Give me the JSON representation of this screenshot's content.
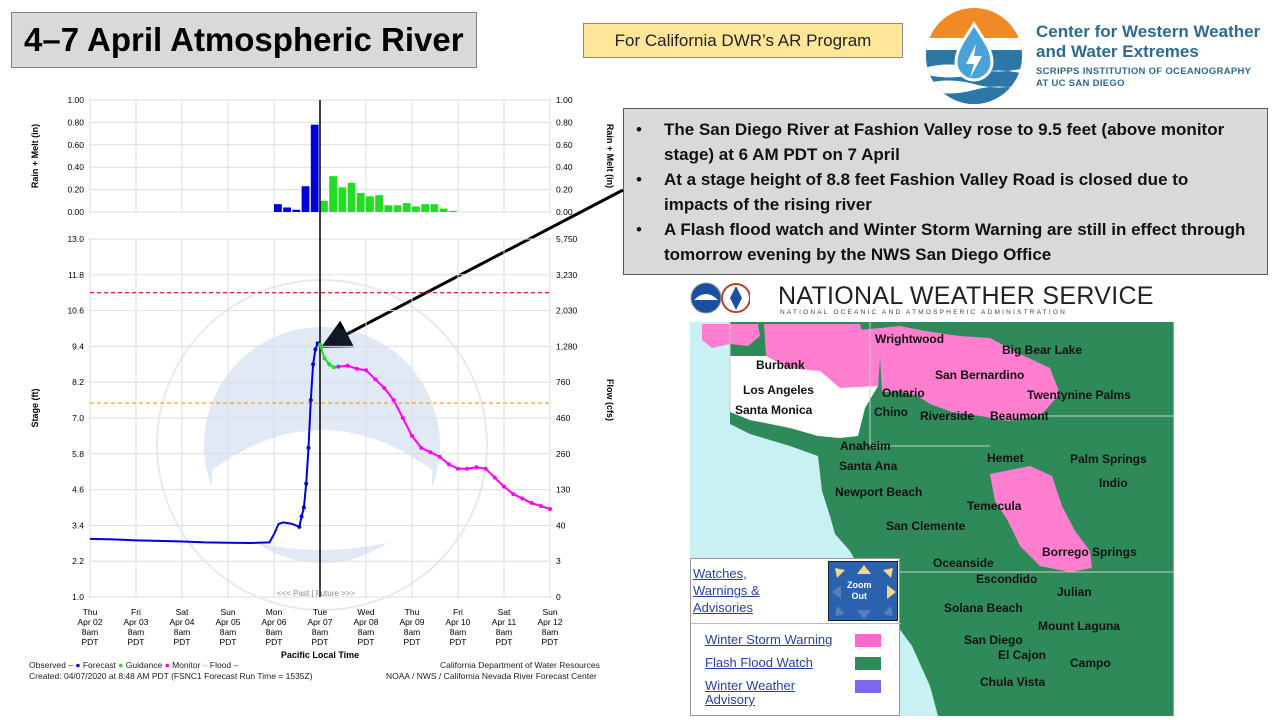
{
  "slide": {
    "title": "4–7 April Atmospheric River",
    "program_badge": "For California DWR’s AR Program",
    "logo": {
      "line1": "Center for Western Weather",
      "line2": "and Water Extremes",
      "line3": "SCRIPPS INSTITUTION OF OCEANOGRAPHY",
      "line4": "AT UC SAN DIEGO"
    },
    "bullets": [
      "The San Diego River at Fashion Valley rose to 9.5 feet (above monitor stage) at 6 AM PDT on 7 April",
      "At a stage height of 8.8 feet Fashion Valley Road is closed due to impacts of the rising river",
      "A Flash flood watch and Winter Storm Warning are still in effect through tomorrow evening by the NWS San Diego Office"
    ]
  },
  "hydrograph": {
    "precip_left_label": "Rain + Melt (in)",
    "precip_right_label": "Rain + Melt (in)",
    "precip_ticks": [
      "1.00",
      "0.80",
      "0.60",
      "0.40",
      "0.20",
      "0.00"
    ],
    "stage_label": "Stage (ft)",
    "flow_label": "Flow (cfs)",
    "stage_ticks": [
      "13.0",
      "11.8",
      "10.6",
      "9.4",
      "8.2",
      "7.0",
      "5.8",
      "4.6",
      "3.4",
      "2.2",
      "1.0"
    ],
    "flow_ticks": [
      "5,750",
      "3,230",
      "2,030",
      "1,280",
      "760",
      "460",
      "260",
      "130",
      "40",
      "3",
      "0"
    ],
    "x_ticks": [
      [
        "Thu",
        "Apr 02",
        "8am",
        "PDT"
      ],
      [
        "Fri",
        "Apr 03",
        "8am",
        "PDT"
      ],
      [
        "Sat",
        "Apr 04",
        "8am",
        "PDT"
      ],
      [
        "Sun",
        "Apr 05",
        "8am",
        "PDT"
      ],
      [
        "Mon",
        "Apr 06",
        "8am",
        "PDT"
      ],
      [
        "Tue",
        "Apr 07",
        "8am",
        "PDT"
      ],
      [
        "Wed",
        "Apr 08",
        "8am",
        "PDT"
      ],
      [
        "Thu",
        "Apr 09",
        "8am",
        "PDT"
      ],
      [
        "Fri",
        "Apr 10",
        "8am",
        "PDT"
      ],
      [
        "Sat",
        "Apr 11",
        "8am",
        "PDT"
      ],
      [
        "Sun",
        "Apr 12",
        "8am",
        "PDT"
      ]
    ],
    "x_axis_label": "Pacific Local Time",
    "past_future": "<<< Past | Future >>>",
    "legend": {
      "observed": "Observed",
      "forecast": "Forecast",
      "guidance": "Guidance",
      "monitor": "Monitor",
      "flood": "Flood"
    },
    "footer_right_1": "California Department of Water Resources",
    "footer_right_2": "NOAA / NWS / California Nevada River Forecast Center",
    "footer_left": "Created: 04/07/2020 at 8:48 AM PDT  (FSNC1 Forecast Run Time = 1535Z)",
    "colors": {
      "observed": "#0000dd",
      "guidance": "#22dd22",
      "monitor": "#ff00ff",
      "flood": "#dd0000",
      "monitor_line": "#ff9900"
    }
  },
  "chart_data": [
    {
      "type": "bar",
      "title": "",
      "ylabel": "Rain + Melt (in)",
      "ylim": [
        0,
        1.0
      ],
      "series": [
        {
          "name": "Observed",
          "x": [
            4.0,
            4.2,
            4.4,
            4.6,
            4.8
          ],
          "values": [
            0.07,
            0.04,
            0.02,
            0.23,
            0.78
          ]
        },
        {
          "name": "Guidance",
          "x": [
            5.0,
            5.2,
            5.4,
            5.6,
            5.8,
            6.0,
            6.2,
            6.4,
            6.6,
            6.8,
            7.0,
            7.2,
            7.4,
            7.6,
            7.8
          ],
          "values": [
            0.1,
            0.32,
            0.22,
            0.26,
            0.17,
            0.14,
            0.15,
            0.06,
            0.06,
            0.08,
            0.05,
            0.07,
            0.07,
            0.03,
            0.01
          ]
        }
      ]
    },
    {
      "type": "line",
      "title": "",
      "xlabel": "Pacific Local Time",
      "ylabel": "Stage (ft)",
      "ylim": [
        1.0,
        13.0
      ],
      "thresholds": {
        "flood": 11.2,
        "monitor": 7.5
      },
      "series": [
        {
          "name": "Observed",
          "x": [
            0,
            0.5,
            1.0,
            1.5,
            2.0,
            2.5,
            3.0,
            3.5,
            3.9,
            4.0,
            4.1,
            4.2,
            4.4,
            4.55,
            4.6,
            4.65,
            4.7,
            4.75,
            4.8,
            4.85,
            4.9,
            4.95,
            5.0
          ],
          "values": [
            2.95,
            2.93,
            2.9,
            2.88,
            2.86,
            2.83,
            2.82,
            2.81,
            2.83,
            3.1,
            3.45,
            3.5,
            3.45,
            3.35,
            3.7,
            4.0,
            4.8,
            6.0,
            7.6,
            8.8,
            9.3,
            9.5,
            9.45
          ]
        },
        {
          "name": "Guidance",
          "x": [
            5.0,
            5.1,
            5.2,
            5.3,
            5.4
          ],
          "values": [
            9.45,
            9.0,
            8.8,
            8.7,
            8.72
          ]
        },
        {
          "name": "Monitor",
          "x": [
            5.4,
            5.6,
            5.8,
            6.0,
            6.2,
            6.4,
            6.6,
            6.8,
            7.0,
            7.2,
            7.4,
            7.6,
            7.8,
            8.0,
            8.2,
            8.4,
            8.6,
            8.8,
            9.0,
            9.2,
            9.4,
            9.6,
            9.8,
            10.0
          ],
          "values": [
            8.72,
            8.75,
            8.65,
            8.6,
            8.3,
            8.0,
            7.6,
            7.0,
            6.4,
            6.0,
            5.85,
            5.7,
            5.45,
            5.3,
            5.3,
            5.35,
            5.3,
            5.0,
            4.7,
            4.45,
            4.3,
            4.15,
            4.05,
            3.95
          ]
        }
      ]
    }
  ],
  "map": {
    "title": "NATIONAL WEATHER SERVICE",
    "subtitle": "NATIONAL OCEANIC AND ATMOSPHERIC ADMINISTRATION",
    "cities": [
      "Wrightwood",
      "Burbank",
      "Big Bear Lake",
      "Los Angeles",
      "San Bernardino",
      "Ontario",
      "Twentynine Palms",
      "Santa Monica",
      "Chino",
      "Riverside",
      "Beaumont",
      "Anaheim",
      "Hemet",
      "Palm Springs",
      "Santa Ana",
      "Indio",
      "Newport Beach",
      "Temecula",
      "San Clemente",
      "Oceanside",
      "Borrego Springs",
      "Escondido",
      "Julian",
      "Solana Beach",
      "Mount Laguna",
      "San Diego",
      "El Cajon",
      "Campo",
      "Chula Vista"
    ],
    "legend_header": [
      "Watches,",
      "Warnings &",
      "Advisories"
    ],
    "zoom": [
      "Zoom",
      "Out"
    ],
    "legend_items": [
      {
        "label": "Winter Storm Warning",
        "color": "#ff66cc"
      },
      {
        "label": "Flash Flood Watch",
        "color": "#2e8b57"
      },
      {
        "label": "Winter Weather",
        "label2": "Advisory",
        "color": "#7b68ee"
      }
    ]
  }
}
